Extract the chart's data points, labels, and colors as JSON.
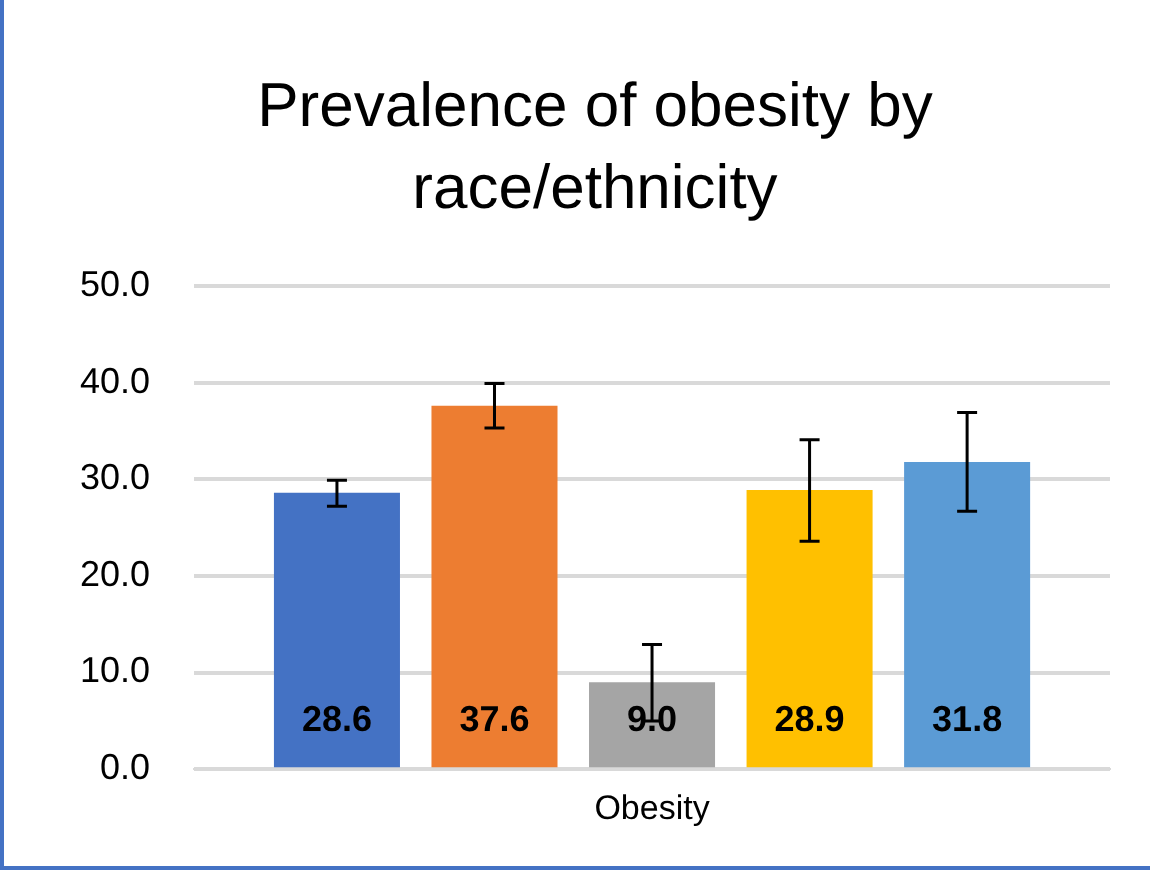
{
  "chart_data": {
    "type": "bar",
    "title": "Prevalence of obesity by race/ethnicity",
    "categories": [
      "Obesity"
    ],
    "series": [
      {
        "color": "#4472c4",
        "values": [
          28.6
        ],
        "value_labels": [
          "28.6"
        ],
        "errors": [
          [
            27.2,
            29.9
          ]
        ]
      },
      {
        "color": "#ed7d31",
        "values": [
          37.6
        ],
        "value_labels": [
          "37.6"
        ],
        "errors": [
          [
            35.3,
            39.9
          ]
        ]
      },
      {
        "color": "#a5a5a5",
        "values": [
          9.0
        ],
        "value_labels": [
          "9.0"
        ],
        "errors": [
          [
            5.0,
            12.9
          ]
        ]
      },
      {
        "color": "#ffc000",
        "values": [
          28.9
        ],
        "value_labels": [
          "28.9"
        ],
        "errors": [
          [
            23.6,
            34.1
          ]
        ]
      },
      {
        "color": "#5b9bd5",
        "values": [
          31.8
        ],
        "value_labels": [
          "31.8"
        ],
        "errors": [
          [
            26.7,
            36.9
          ]
        ]
      }
    ],
    "ylim": [
      0,
      50
    ],
    "yticks": [
      {
        "value": 0,
        "label": "0.0"
      },
      {
        "value": 10,
        "label": "10.0"
      },
      {
        "value": 20,
        "label": "20.0"
      },
      {
        "value": 30,
        "label": "30.0"
      },
      {
        "value": 40,
        "label": "40.0"
      },
      {
        "value": 50,
        "label": "50.0"
      }
    ],
    "grid": "y",
    "legend": false
  }
}
